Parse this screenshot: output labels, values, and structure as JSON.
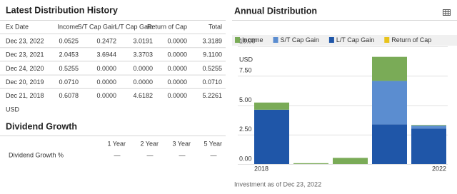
{
  "history": {
    "title": "Latest Distribution History",
    "columns": [
      "Ex Date",
      "Income",
      "S/T Cap Gain",
      "L/T Cap Gain",
      "Return of Cap",
      "Total"
    ],
    "rows": [
      [
        "Dec 23, 2022",
        "0.0525",
        "0.2472",
        "3.0191",
        "0.0000",
        "3.3189"
      ],
      [
        "Dec 23, 2021",
        "2.0453",
        "3.6944",
        "3.3703",
        "0.0000",
        "9.1100"
      ],
      [
        "Dec 24, 2020",
        "0.5255",
        "0.0000",
        "0.0000",
        "0.0000",
        "0.5255"
      ],
      [
        "Dec 20, 2019",
        "0.0710",
        "0.0000",
        "0.0000",
        "0.0000",
        "0.0710"
      ],
      [
        "Dec 21, 2018",
        "0.6078",
        "0.0000",
        "4.6182",
        "0.0000",
        "5.2261"
      ]
    ],
    "currency": "USD"
  },
  "growth": {
    "title": "Dividend Growth",
    "columns": [
      "1 Year",
      "2 Year",
      "3 Year",
      "5 Year"
    ],
    "row_label": "Dividend Growth %",
    "values": [
      "—",
      "—",
      "—",
      "—"
    ]
  },
  "chart_data": {
    "type": "stacked_bar",
    "title": "Annual Distribution",
    "categories": [
      "2018",
      null,
      null,
      null,
      "2022"
    ],
    "series": [
      {
        "name": "Income",
        "color": "#7aab57",
        "values": [
          0.6078,
          0.071,
          0.5255,
          2.0453,
          0.0525
        ]
      },
      {
        "name": "S/T Cap Gain",
        "color": "#5b8dd0",
        "values": [
          0,
          0,
          0,
          3.6944,
          0.2472
        ]
      },
      {
        "name": "L/T Cap Gain",
        "color": "#1f56a8",
        "values": [
          4.6182,
          0,
          0,
          3.3703,
          3.0191
        ]
      },
      {
        "name": "Return of Cap",
        "color": "#e8c31c",
        "values": [
          0,
          0,
          0,
          0,
          0
        ]
      }
    ],
    "stack_order": [
      "L/T Cap Gain",
      "S/T Cap Gain",
      "Income",
      "Return of Cap"
    ],
    "ylim": [
      0,
      10
    ],
    "yticks": [
      {
        "value": 0,
        "label": "0.00"
      },
      {
        "value": 2.5,
        "label": "2.50"
      },
      {
        "value": 5,
        "label": "5.00"
      },
      {
        "value": 7.5,
        "label": "7.50"
      },
      {
        "value": 10,
        "label": "10.00"
      }
    ],
    "y_unit": "USD",
    "grid": true,
    "note": "Investment as of Dec 23, 2022"
  }
}
